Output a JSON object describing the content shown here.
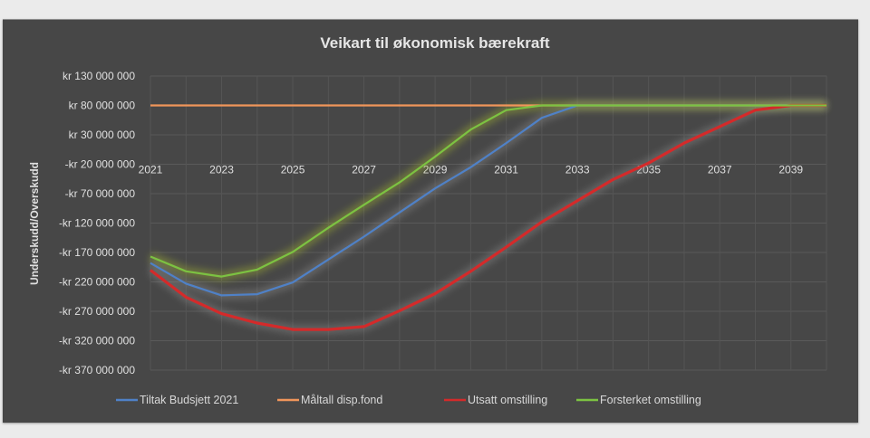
{
  "chart_data": {
    "type": "line",
    "title": "Veikart til økonomisk bærekraft",
    "xlabel": "",
    "ylabel": "Underskudd/Overskudd",
    "x": [
      2021,
      2022,
      2023,
      2024,
      2025,
      2026,
      2027,
      2028,
      2029,
      2030,
      2031,
      2032,
      2033,
      2034,
      2035,
      2036,
      2037,
      2038,
      2039,
      2040
    ],
    "xlim": [
      2021,
      2040
    ],
    "x_tick_labels": [
      "2021",
      "2023",
      "2025",
      "2027",
      "2029",
      "2031",
      "2033",
      "2035",
      "2037",
      "2039"
    ],
    "x_tick_values": [
      2021,
      2023,
      2025,
      2027,
      2029,
      2031,
      2033,
      2035,
      2037,
      2039
    ],
    "ylim": [
      -370000000,
      130000000
    ],
    "y_tick_values": [
      130000000,
      80000000,
      30000000,
      -20000000,
      -70000000,
      -120000000,
      -170000000,
      -220000000,
      -270000000,
      -320000000,
      -370000000
    ],
    "y_tick_labels": [
      "kr 130 000 000",
      "kr 80 000 000",
      "kr 30 000 000",
      "-kr 20 000 000",
      "-kr 70 000 000",
      "-kr 120 000 000",
      "-kr 170 000 000",
      "-kr 220 000 000",
      "-kr 270 000 000",
      "-kr 320 000 000",
      "-kr 370 000 000"
    ],
    "x_axis_crosses_at": -20000000,
    "grid": true,
    "legend_position": "bottom",
    "series": [
      {
        "name": "Tiltak Budsjett 2021",
        "color": "#4f81c7",
        "values": [
          -188000000,
          -223000000,
          -243000000,
          -241000000,
          -221000000,
          -182000000,
          -143000000,
          -102000000,
          -61000000,
          -25000000,
          16000000,
          59000000,
          80000000,
          80000000,
          80000000,
          80000000,
          80000000,
          80000000,
          80000000,
          80000000
        ]
      },
      {
        "name": "Måltall disp.fond",
        "color": "#f0955a",
        "values": [
          80000000,
          80000000,
          80000000,
          80000000,
          80000000,
          80000000,
          80000000,
          80000000,
          80000000,
          80000000,
          80000000,
          80000000,
          80000000,
          80000000,
          80000000,
          80000000,
          80000000,
          80000000,
          80000000,
          80000000
        ]
      },
      {
        "name": "Utsatt omstilling",
        "color": "#d42a2a",
        "values": [
          -200000000,
          -246000000,
          -274000000,
          -290000000,
          -301000000,
          -301000000,
          -296000000,
          -269000000,
          -240000000,
          -202000000,
          -161000000,
          -118000000,
          -82000000,
          -46000000,
          -18000000,
          16000000,
          44000000,
          72000000,
          80000000,
          80000000
        ]
      },
      {
        "name": "Forsterket omstilling",
        "color": "#7cc242",
        "values": [
          -177000000,
          -202000000,
          -211000000,
          -199000000,
          -169000000,
          -128000000,
          -89000000,
          -51000000,
          -7000000,
          39000000,
          72000000,
          80000000,
          80000000,
          80000000,
          80000000,
          80000000,
          80000000,
          80000000,
          80000000,
          80000000
        ]
      }
    ]
  }
}
